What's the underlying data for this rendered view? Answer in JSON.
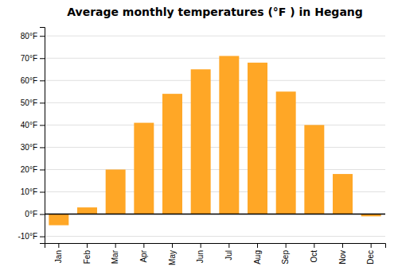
{
  "chart_data": {
    "type": "bar",
    "title": "Average monthly temperatures (°F ) in Hegang",
    "categories": [
      "Jan",
      "Feb",
      "Mar",
      "Apr",
      "May",
      "Jun",
      "Jul",
      "Aug",
      "Sep",
      "Oct",
      "Nov",
      "Dec"
    ],
    "values": [
      -5,
      3,
      20,
      41,
      54,
      65,
      71,
      68,
      55,
      40,
      18,
      -1
    ],
    "color": "#FFA726",
    "ylim": [
      -13,
      84
    ],
    "yticks": [
      {
        "value": -10,
        "label": "-10°F"
      },
      {
        "value": 0,
        "label": "0°F"
      },
      {
        "value": 10,
        "label": "10°F"
      },
      {
        "value": 20,
        "label": "20°F"
      },
      {
        "value": 30,
        "label": "30°F"
      },
      {
        "value": 40,
        "label": "40°F"
      },
      {
        "value": 50,
        "label": "50°F"
      },
      {
        "value": 60,
        "label": "60°F"
      },
      {
        "value": 70,
        "label": "70°F"
      },
      {
        "value": 80,
        "label": "80°F"
      }
    ],
    "grid": true
  }
}
